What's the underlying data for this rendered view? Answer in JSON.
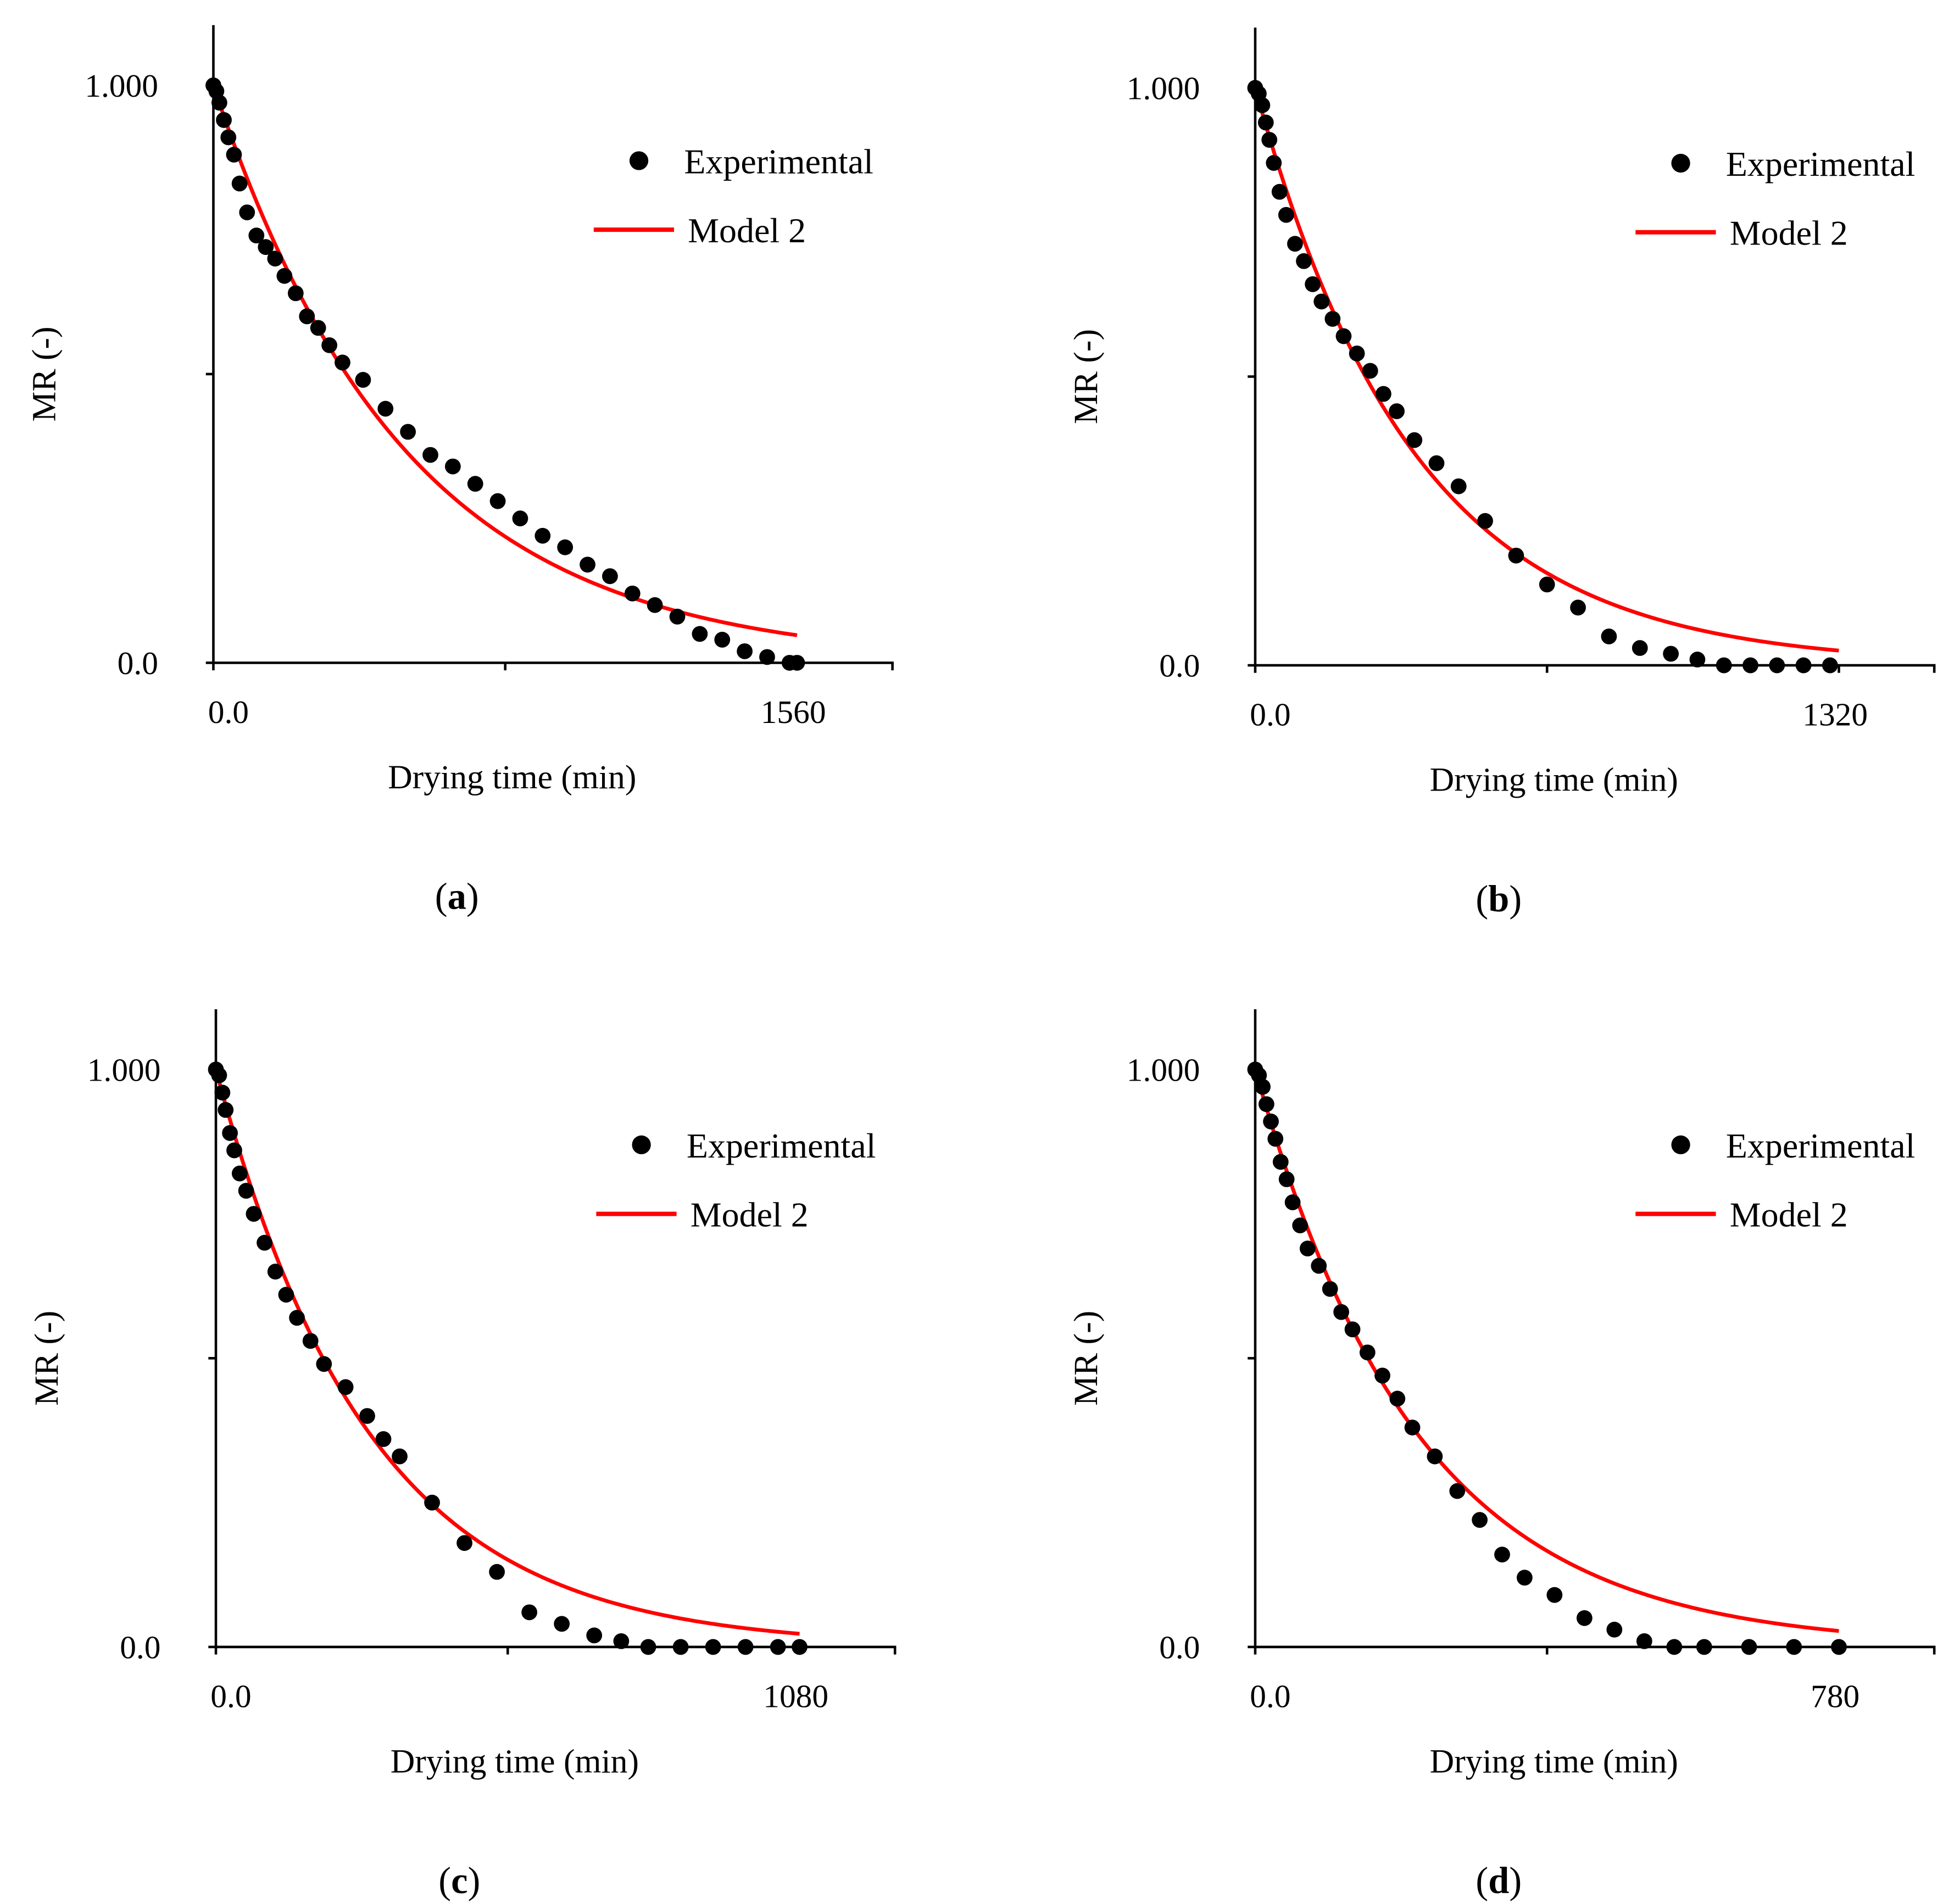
{
  "chart_data": [
    {
      "panel_label": "a",
      "type": "scatter",
      "xlabel": "Drying time (min)",
      "ylabel": "MR (-)",
      "xlim": [
        0,
        1560
      ],
      "ylim": [
        0,
        1
      ],
      "x_tick_labels": [
        "0.0",
        "1560"
      ],
      "y_tick_labels": [
        "0.0",
        "1.000"
      ],
      "legend_position": "top-right",
      "series": [
        {
          "name": "Experimental",
          "type": "scatter",
          "color": "#000000",
          "x": [
            0,
            8,
            16,
            28,
            40,
            55,
            70,
            90,
            115,
            140,
            165,
            190,
            220,
            250,
            280,
            310,
            345,
            400,
            460,
            520,
            580,
            640,
            700,
            760,
            820,
            880,
            940,
            1000,
            1060,
            1120,
            1180,
            1240,
            1300,
            1360,
            1420,
            1480,
            1540,
            1560
          ],
          "y": [
            1.0,
            0.99,
            0.97,
            0.94,
            0.91,
            0.88,
            0.83,
            0.78,
            0.74,
            0.72,
            0.7,
            0.67,
            0.64,
            0.6,
            0.58,
            0.55,
            0.52,
            0.49,
            0.44,
            0.4,
            0.36,
            0.34,
            0.31,
            0.28,
            0.25,
            0.22,
            0.2,
            0.17,
            0.15,
            0.12,
            0.1,
            0.08,
            0.05,
            0.04,
            0.02,
            0.01,
            0.0,
            0.0
          ]
        },
        {
          "name": "Model 2",
          "type": "line",
          "color": "#ff0000",
          "k": 0.00195,
          "n": 1.0,
          "x_end": 1560
        }
      ]
    },
    {
      "panel_label": "b",
      "type": "scatter",
      "xlabel": "Drying time (min)",
      "ylabel": "MR (-)",
      "xlim": [
        0,
        1320
      ],
      "ylim": [
        0,
        1
      ],
      "x_tick_labels": [
        "0.0",
        "1320"
      ],
      "y_tick_labels": [
        "0.0",
        "1.000"
      ],
      "legend_position": "top-right",
      "series": [
        {
          "name": "Experimental",
          "type": "scatter",
          "color": "#000000",
          "x": [
            0,
            8,
            16,
            24,
            32,
            42,
            55,
            70,
            90,
            110,
            130,
            150,
            175,
            200,
            230,
            260,
            290,
            320,
            360,
            410,
            460,
            520,
            590,
            660,
            730,
            800,
            870,
            940,
            1000,
            1060,
            1120,
            1180,
            1240,
            1300
          ],
          "y": [
            1.0,
            0.99,
            0.97,
            0.94,
            0.91,
            0.87,
            0.82,
            0.78,
            0.73,
            0.7,
            0.66,
            0.63,
            0.6,
            0.57,
            0.54,
            0.51,
            0.47,
            0.44,
            0.39,
            0.35,
            0.31,
            0.25,
            0.19,
            0.14,
            0.1,
            0.05,
            0.03,
            0.02,
            0.01,
            0.0,
            0.0,
            0.0,
            0.0,
            0.0
          ]
        },
        {
          "name": "Model 2",
          "type": "line",
          "color": "#ff0000",
          "k": 0.00278,
          "n": 1.0,
          "x_end": 1320
        }
      ]
    },
    {
      "panel_label": "c",
      "type": "scatter",
      "xlabel": "Drying time (min)",
      "ylabel": "MR (-)",
      "xlim": [
        0,
        1080
      ],
      "ylim": [
        0,
        1
      ],
      "x_tick_labels": [
        "0.0",
        "1080"
      ],
      "y_tick_labels": [
        "0.0",
        "1.000"
      ],
      "legend_position": "top-right",
      "series": [
        {
          "name": "Experimental",
          "type": "scatter",
          "color": "#000000",
          "x": [
            0,
            6,
            12,
            18,
            26,
            34,
            44,
            56,
            70,
            90,
            110,
            130,
            150,
            175,
            200,
            240,
            280,
            310,
            340,
            400,
            460,
            520,
            580,
            640,
            700,
            750,
            800,
            860,
            920,
            980,
            1040,
            1080
          ],
          "y": [
            1.0,
            0.99,
            0.96,
            0.93,
            0.89,
            0.86,
            0.82,
            0.79,
            0.75,
            0.7,
            0.65,
            0.61,
            0.57,
            0.53,
            0.49,
            0.45,
            0.4,
            0.36,
            0.33,
            0.25,
            0.18,
            0.13,
            0.06,
            0.04,
            0.02,
            0.01,
            0.0,
            0.0,
            0.0,
            0.0,
            0.0,
            0.0
          ]
        },
        {
          "name": "Model 2",
          "type": "line",
          "color": "#ff0000",
          "k": 0.0035,
          "n": 1.0,
          "x_end": 1080
        }
      ]
    },
    {
      "panel_label": "d",
      "type": "scatter",
      "xlabel": "Drying time (min)",
      "ylabel": "MR (-)",
      "xlim": [
        0,
        780
      ],
      "ylim": [
        0,
        1
      ],
      "x_tick_labels": [
        "0.0",
        "780"
      ],
      "y_tick_labels": [
        "0.0",
        "1.000"
      ],
      "legend_position": "top-right",
      "series": [
        {
          "name": "Experimental",
          "type": "scatter",
          "color": "#000000",
          "x": [
            0,
            5,
            10,
            15,
            21,
            27,
            34,
            42,
            50,
            60,
            70,
            85,
            100,
            115,
            130,
            150,
            170,
            190,
            210,
            240,
            270,
            300,
            330,
            360,
            400,
            440,
            480,
            520,
            560,
            600,
            660,
            720,
            780
          ],
          "y": [
            1.0,
            0.99,
            0.97,
            0.94,
            0.91,
            0.88,
            0.84,
            0.81,
            0.77,
            0.73,
            0.69,
            0.66,
            0.62,
            0.58,
            0.55,
            0.51,
            0.47,
            0.43,
            0.38,
            0.33,
            0.27,
            0.22,
            0.16,
            0.12,
            0.09,
            0.05,
            0.03,
            0.01,
            0.0,
            0.0,
            0.0,
            0.0,
            0.0
          ]
        },
        {
          "name": "Model 2",
          "type": "line",
          "color": "#ff0000",
          "k": 0.0046,
          "n": 1.0,
          "x_end": 780
        }
      ]
    }
  ]
}
